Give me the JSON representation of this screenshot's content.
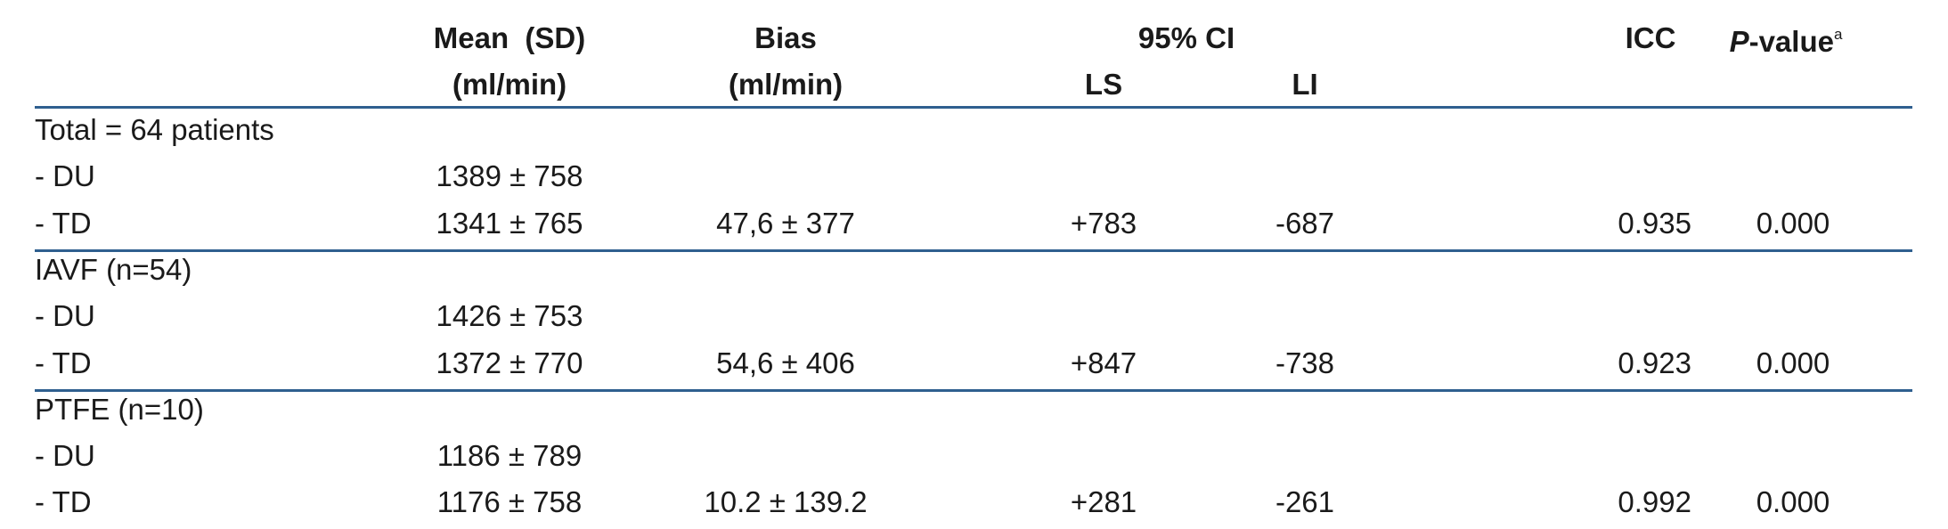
{
  "header": {
    "mean_title": "Mean  (SD)",
    "mean_unit": "(ml/min)",
    "bias_title": "Bias",
    "bias_unit": "(ml/min)",
    "ci_title": "95% CI",
    "ls": "LS",
    "li": "LI",
    "icc": "ICC",
    "p_italic": "P",
    "p_rest": "-value",
    "p_note": "a"
  },
  "groups": [
    {
      "title": "Total = 64 patients",
      "rows": [
        {
          "label": "- DU",
          "mean": "1389 ± 758"
        },
        {
          "label": "- TD",
          "mean": "1341 ± 765",
          "bias": "47,6 ± 377",
          "ls": "+783",
          "li": "-687",
          "icc": "0.935",
          "p": "0.000"
        }
      ]
    },
    {
      "title": "IAVF (n=54)",
      "rows": [
        {
          "label": "- DU",
          "mean": "1426 ± 753"
        },
        {
          "label": "- TD",
          "mean": "1372 ± 770",
          "bias": "54,6 ± 406",
          "ls": "+847",
          "li": "-738",
          "icc": "0.923",
          "p": "0.000"
        }
      ]
    },
    {
      "title": "PTFE (n=10)",
      "rows": [
        {
          "label": "- DU",
          "mean": "1186 ± 789"
        },
        {
          "label": "- TD",
          "mean": "1176 ± 758",
          "bias": "10.2 ± 139.2",
          "ls": "+281",
          "li": "-261",
          "icc": "0.992",
          "p": "0.000"
        }
      ]
    }
  ]
}
